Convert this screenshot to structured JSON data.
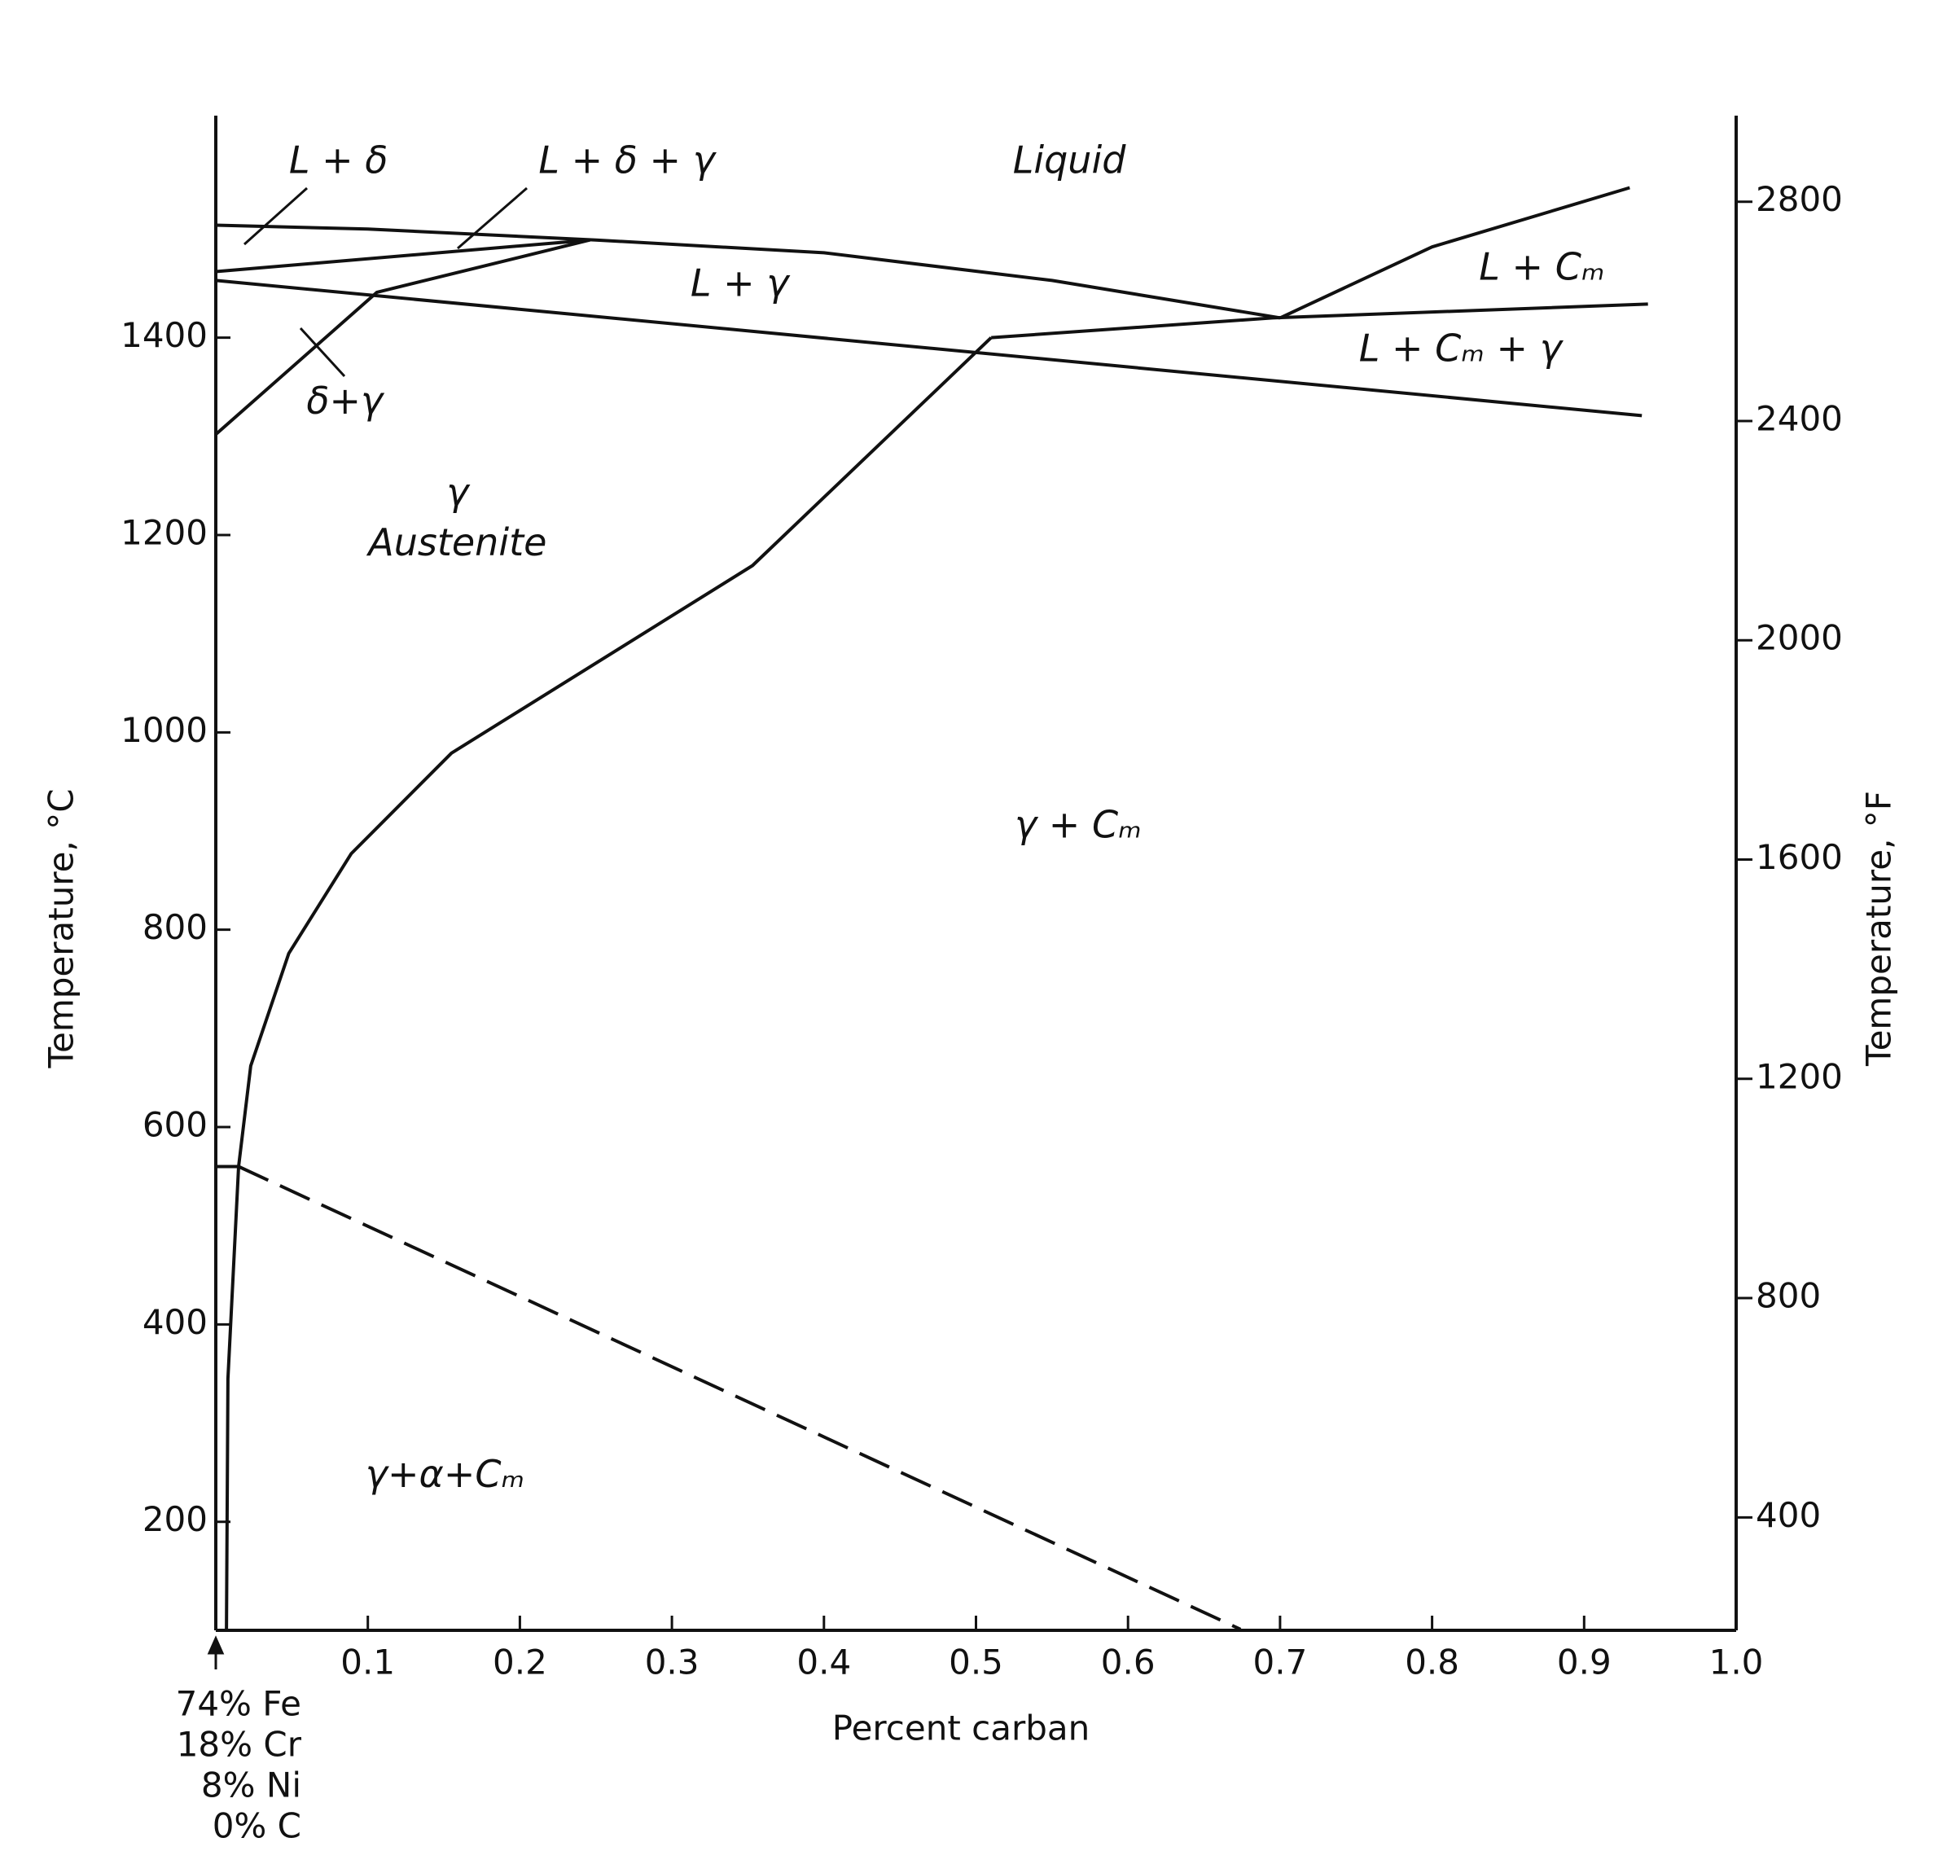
{
  "chart_data": {
    "type": "line",
    "xlabel": "Percent carban",
    "ylabel": "Temperature, °C",
    "y2label": "Temperature, °F",
    "xlim": [
      0,
      1
    ],
    "xticks": [
      0.1,
      0.2,
      0.3,
      0.4,
      0.5,
      0.6,
      0.7,
      0.8,
      0.9,
      {
        "value": 1,
        "label": "1.0"
      }
    ],
    "ylim": [
      90,
      1625
    ],
    "yticks": [
      200,
      400,
      600,
      800,
      1000,
      1200,
      1400
    ],
    "y2lim": [
      194,
      2957
    ],
    "y2ticks": [
      400,
      800,
      1200,
      1600,
      2000,
      2400,
      2800
    ],
    "grid": false,
    "series": [
      {
        "color": "#111111",
        "x": [
          0,
          0.1,
          0.25,
          0.4,
          0.55,
          0.7
        ],
        "values": [
          1514,
          1510,
          1499,
          1486,
          1458,
          1420
        ]
      },
      {
        "color": "#111111",
        "x": [
          0.7,
          0.8,
          0.93
        ],
        "values": [
          1420,
          1492,
          1552
        ]
      },
      {
        "color": "#111111",
        "x": [
          0,
          0.246
        ],
        "values": [
          1467,
          1499
        ]
      },
      {
        "color": "#111111",
        "x": [
          0,
          0.938
        ],
        "values": [
          1458,
          1321
        ]
      },
      {
        "color": "#111111",
        "x": [
          0,
          0.106,
          0.246
        ],
        "values": [
          1302,
          1446,
          1499
        ]
      },
      {
        "color": "#111111",
        "x": [
          0.51,
          0.695,
          0.942
        ],
        "values": [
          1400,
          1420,
          1434
        ]
      },
      {
        "color": "#111111",
        "x": [
          0.51,
          0.353,
          0.155,
          0.089,
          0.048,
          0.023,
          0.015,
          0.008,
          0.007
        ],
        "values": [
          1400,
          1169,
          979,
          877,
          776,
          662,
          560,
          345,
          91
        ]
      },
      {
        "color": "#111111",
        "x": [
          0,
          0.015
        ],
        "values": [
          560,
          560
        ]
      },
      {
        "color": "#111111",
        "dashed": true,
        "x": [
          0.015,
          0.674
        ],
        "values": [
          560,
          91
        ]
      }
    ],
    "annotations": [
      "L + δ",
      "L + δ + γ",
      "Liquid",
      "L + γ",
      "L + Cₘ",
      "L + Cₘ + γ",
      "δ+γ",
      "γ",
      "Austenite",
      "γ + Cₘ",
      "γ+α+Cₘ"
    ],
    "composition": [
      "74% Fe",
      "18% Cr",
      "8% Ni",
      "0% C"
    ]
  }
}
